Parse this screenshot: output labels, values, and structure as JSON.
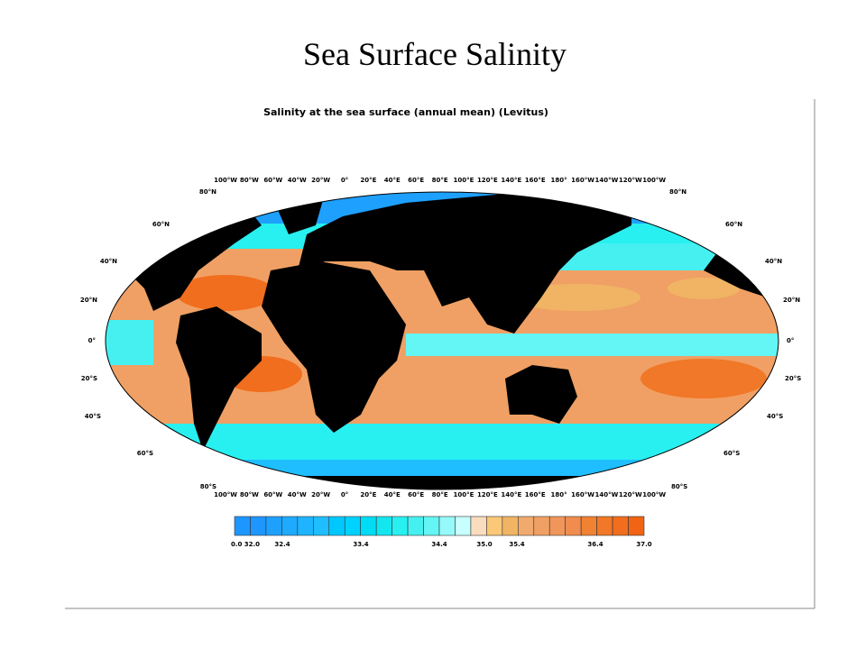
{
  "title": "Sea Surface Salinity",
  "figure": {
    "title": "Salinity at the sea surface (annual mean) (Levitus)",
    "longitude_labels": [
      "100°W",
      "80°W",
      "60°W",
      "40°W",
      "20°W",
      "0°",
      "20°E",
      "40°E",
      "60°E",
      "80°E",
      "100°E",
      "120°E",
      "140°E",
      "160°E",
      "180°",
      "160°W",
      "140°W",
      "120°W",
      "100°W"
    ],
    "latitude_labels": [
      "80°N",
      "60°N",
      "40°N",
      "20°N",
      "0°",
      "20°S",
      "40°S",
      "60°S",
      "80°S"
    ],
    "colorbar": {
      "colors": [
        "#1e96ff",
        "#1e96ff",
        "#1ea0ff",
        "#1eaaff",
        "#1eb4ff",
        "#1ebeff",
        "#00c8ff",
        "#00d2ff",
        "#00dcf5",
        "#14e6f0",
        "#28f0f0",
        "#46f0f0",
        "#64f5f5",
        "#96fafa",
        "#c8ffff",
        "#fadcbe",
        "#fac878",
        "#f0b464",
        "#f0aa6e",
        "#f0a064",
        "#f0965a",
        "#f08c50",
        "#f08232",
        "#f07828",
        "#f06e1e",
        "#f06414"
      ],
      "labels": [
        "0.0 32.0",
        "32.4",
        "33.4",
        "34.4",
        "35.0",
        "35.4",
        "36.4",
        "37.0"
      ]
    }
  }
}
